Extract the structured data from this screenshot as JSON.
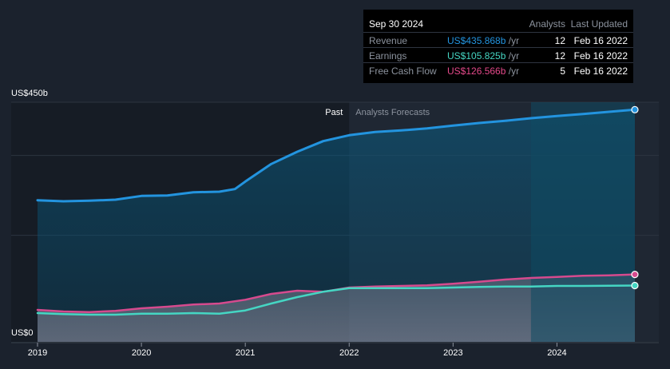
{
  "tooltip": {
    "date": "Sep 30 2024",
    "col_analysts": "Analysts",
    "col_updated": "Last Updated",
    "rows": [
      {
        "label": "Revenue",
        "value": "US$435.868b",
        "unit": "/yr",
        "analysts": "12",
        "updated": "Feb 16 2022",
        "color": "#2394df"
      },
      {
        "label": "Earnings",
        "value": "US$105.825b",
        "unit": "/yr",
        "analysts": "12",
        "updated": "Feb 16 2022",
        "color": "#45d6c3"
      },
      {
        "label": "Free Cash Flow",
        "value": "US$126.566b",
        "unit": "/yr",
        "analysts": "5",
        "updated": "Feb 16 2022",
        "color": "#e4498a"
      }
    ]
  },
  "chart_data": {
    "type": "line",
    "y_top_label": "US$450b",
    "y_bottom_label": "US$0",
    "ylim": [
      0,
      450
    ],
    "xlim": [
      2019.0,
      2025.0
    ],
    "x_ticks": [
      "2019",
      "2020",
      "2021",
      "2022",
      "2023",
      "2024"
    ],
    "past_label": "Past",
    "forecast_label": "Analysts Forecasts",
    "forecast_start": 2022.0,
    "highlight_start": 2023.75,
    "colors": {
      "grid": "#2c3440",
      "axis": "#8c939e",
      "forecast_bg": "#2c3440"
    },
    "series": [
      {
        "name": "Revenue",
        "color": "#2394df",
        "points": [
          [
            2019.0,
            266
          ],
          [
            2019.25,
            264
          ],
          [
            2019.5,
            265
          ],
          [
            2019.75,
            267
          ],
          [
            2020.0,
            274
          ],
          [
            2020.25,
            275
          ],
          [
            2020.5,
            281
          ],
          [
            2020.75,
            282
          ],
          [
            2020.9,
            287
          ],
          [
            2021.0,
            301
          ],
          [
            2021.25,
            334
          ],
          [
            2021.5,
            357
          ],
          [
            2021.75,
            377
          ],
          [
            2022.0,
            388
          ],
          [
            2022.25,
            394
          ],
          [
            2022.5,
            397
          ],
          [
            2022.75,
            401
          ],
          [
            2023.0,
            406
          ],
          [
            2023.25,
            411
          ],
          [
            2023.5,
            415
          ],
          [
            2023.75,
            420
          ],
          [
            2024.0,
            424
          ],
          [
            2024.25,
            428
          ],
          [
            2024.5,
            432
          ],
          [
            2024.75,
            436
          ]
        ]
      },
      {
        "name": "Free Cash Flow",
        "color": "#d64a8e",
        "points": [
          [
            2019.0,
            60
          ],
          [
            2019.25,
            57
          ],
          [
            2019.5,
            56
          ],
          [
            2019.75,
            58
          ],
          [
            2020.0,
            63
          ],
          [
            2020.25,
            66
          ],
          [
            2020.5,
            70
          ],
          [
            2020.75,
            72
          ],
          [
            2021.0,
            79
          ],
          [
            2021.25,
            90
          ],
          [
            2021.5,
            96
          ],
          [
            2021.75,
            94
          ],
          [
            2022.0,
            102
          ],
          [
            2022.25,
            104
          ],
          [
            2022.5,
            105
          ],
          [
            2022.75,
            106
          ],
          [
            2023.0,
            109
          ],
          [
            2023.25,
            113
          ],
          [
            2023.5,
            117
          ],
          [
            2023.75,
            120
          ],
          [
            2024.0,
            122
          ],
          [
            2024.25,
            124
          ],
          [
            2024.5,
            125
          ],
          [
            2024.75,
            126.6
          ]
        ]
      },
      {
        "name": "Earnings",
        "color": "#45d6c3",
        "points": [
          [
            2019.0,
            54
          ],
          [
            2019.25,
            52
          ],
          [
            2019.5,
            51
          ],
          [
            2019.75,
            51
          ],
          [
            2020.0,
            53
          ],
          [
            2020.25,
            53
          ],
          [
            2020.5,
            54
          ],
          [
            2020.75,
            53
          ],
          [
            2021.0,
            59
          ],
          [
            2021.25,
            72
          ],
          [
            2021.5,
            84
          ],
          [
            2021.75,
            94
          ],
          [
            2022.0,
            101
          ],
          [
            2022.25,
            101
          ],
          [
            2022.5,
            101
          ],
          [
            2022.75,
            101
          ],
          [
            2023.0,
            102
          ],
          [
            2023.25,
            103
          ],
          [
            2023.5,
            104
          ],
          [
            2023.75,
            104
          ],
          [
            2024.0,
            105
          ],
          [
            2024.25,
            105
          ],
          [
            2024.5,
            105.5
          ],
          [
            2024.75,
            105.8
          ]
        ]
      }
    ]
  }
}
